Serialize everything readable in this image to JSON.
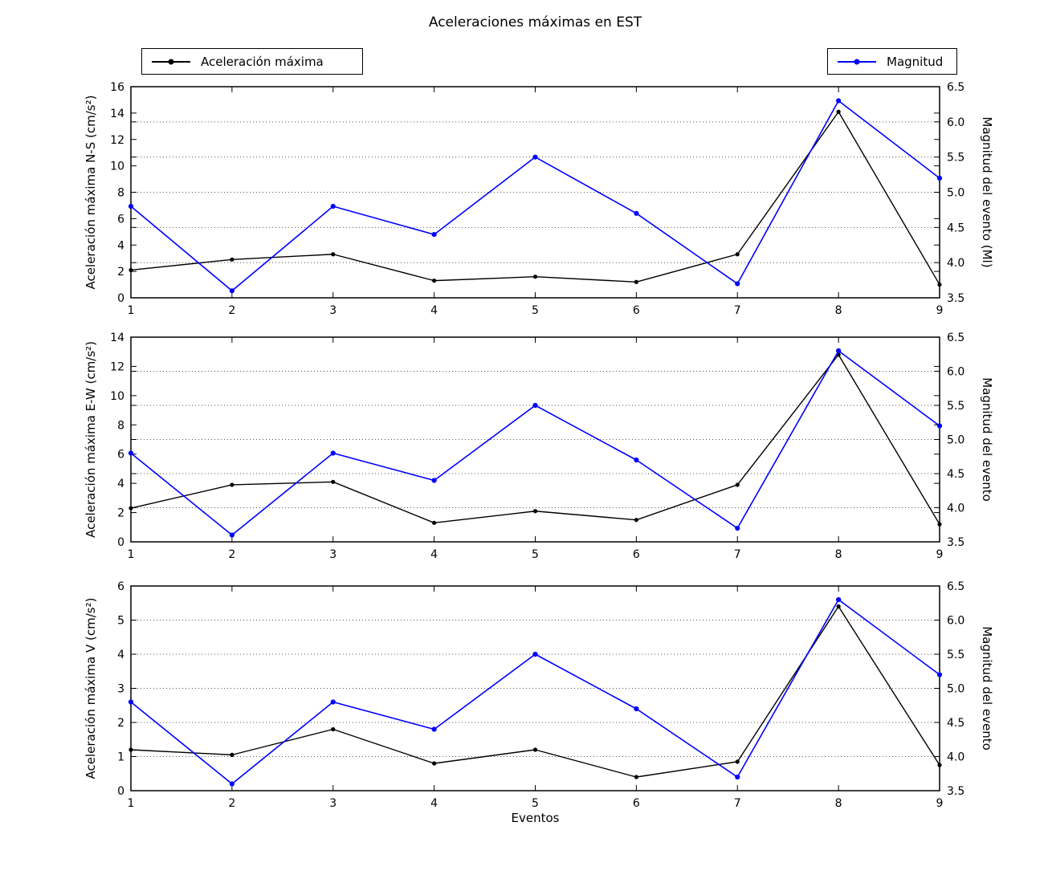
{
  "title": "Aceleraciones máximas en EST",
  "xlabel": "Eventos",
  "legends": {
    "accel_label": "Aceleración máxima",
    "magnitud_label": "Magnitud"
  },
  "colors": {
    "accel": "#000000",
    "magnitud": "#0000ff",
    "grid": "#555555",
    "spine": "#000000"
  },
  "x_tick_labels": [
    "1",
    "2",
    "3",
    "4",
    "5",
    "6",
    "7",
    "8",
    "9"
  ],
  "right_axis": {
    "min": 3.5,
    "max": 6.5,
    "tick_labels": [
      "3.5",
      "4.0",
      "4.5",
      "5.0",
      "5.5",
      "6.0",
      "6.5"
    ],
    "tick_values": [
      3.5,
      4.0,
      4.5,
      5.0,
      5.5,
      6.0,
      6.5
    ],
    "gridline_values": [
      4.0,
      4.5,
      5.0,
      5.5,
      6.0
    ]
  },
  "chart_data": [
    {
      "type": "line",
      "title": "",
      "x": [
        1,
        2,
        3,
        4,
        5,
        6,
        7,
        8,
        9
      ],
      "ylabel_left": "Aceleración máxima N-S (cm/s²)",
      "ylabel_right": "Magnitud del evento (Ml)",
      "ylim_left": [
        0,
        16
      ],
      "yticks_left": [
        0,
        2,
        4,
        6,
        8,
        10,
        12,
        14,
        16
      ],
      "ylim_right": [
        3.5,
        6.5
      ],
      "grid": "dotted-horizontal",
      "series": [
        {
          "name": "Aceleración máxima",
          "axis": "left",
          "color": "#000000",
          "values": [
            2.1,
            2.9,
            3.3,
            1.3,
            1.6,
            1.2,
            3.3,
            14.1,
            1.0
          ]
        },
        {
          "name": "Magnitud",
          "axis": "right",
          "color": "#0000ff",
          "values": [
            4.8,
            3.6,
            4.8,
            4.4,
            5.5,
            4.7,
            3.7,
            6.3,
            5.2
          ]
        }
      ]
    },
    {
      "type": "line",
      "title": "",
      "x": [
        1,
        2,
        3,
        4,
        5,
        6,
        7,
        8,
        9
      ],
      "ylabel_left": "Aceleración máxima E-W (cm/s²)",
      "ylabel_right": "Magnitud del evento",
      "ylim_left": [
        0,
        14
      ],
      "yticks_left": [
        0,
        2,
        4,
        6,
        8,
        10,
        12,
        14
      ],
      "ylim_right": [
        3.5,
        6.5
      ],
      "grid": "dotted-horizontal",
      "series": [
        {
          "name": "Aceleración máxima",
          "axis": "left",
          "color": "#000000",
          "values": [
            2.3,
            3.9,
            4.1,
            1.3,
            2.1,
            1.5,
            3.9,
            12.8,
            1.2
          ]
        },
        {
          "name": "Magnitud",
          "axis": "right",
          "color": "#0000ff",
          "values": [
            4.8,
            3.6,
            4.8,
            4.4,
            5.5,
            4.7,
            3.7,
            6.3,
            5.2
          ]
        }
      ]
    },
    {
      "type": "line",
      "title": "",
      "x": [
        1,
        2,
        3,
        4,
        5,
        6,
        7,
        8,
        9
      ],
      "ylabel_left": "Aceleración máxima V (cm/s²)",
      "ylabel_right": "Magnitud del evento",
      "ylim_left": [
        0,
        6
      ],
      "yticks_left": [
        0,
        1,
        2,
        3,
        4,
        5,
        6
      ],
      "ylim_right": [
        3.5,
        6.5
      ],
      "grid": "dotted-horizontal",
      "series": [
        {
          "name": "Aceleración máxima",
          "axis": "left",
          "color": "#000000",
          "values": [
            1.2,
            1.05,
            1.8,
            0.8,
            1.2,
            0.4,
            0.85,
            5.4,
            0.75
          ]
        },
        {
          "name": "Magnitud",
          "axis": "right",
          "color": "#0000ff",
          "values": [
            4.8,
            3.6,
            4.8,
            4.4,
            5.5,
            4.7,
            3.7,
            6.3,
            5.2
          ]
        }
      ]
    }
  ]
}
